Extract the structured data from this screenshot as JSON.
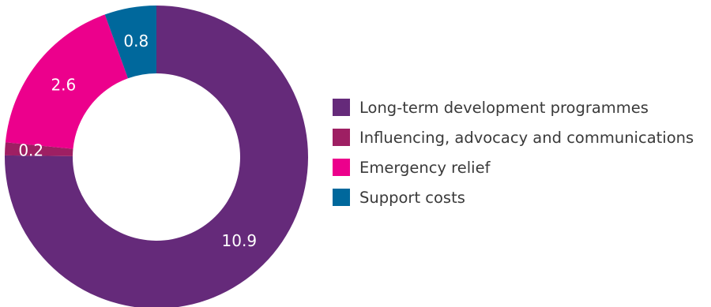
{
  "chart_data": {
    "type": "pie",
    "variant": "donut",
    "title": "",
    "categories": [
      "Long-term development programmes",
      "Influencing, advocacy and communications",
      "Emergency relief",
      "Support costs"
    ],
    "values": [
      10.9,
      0.2,
      2.6,
      0.8
    ],
    "data_labels": [
      "10.9",
      "0.2",
      "2.6",
      "0.8"
    ],
    "colors": [
      "#652a7a",
      "#9e1f63",
      "#ec008c",
      "#00689c"
    ],
    "legend_position": "right"
  }
}
